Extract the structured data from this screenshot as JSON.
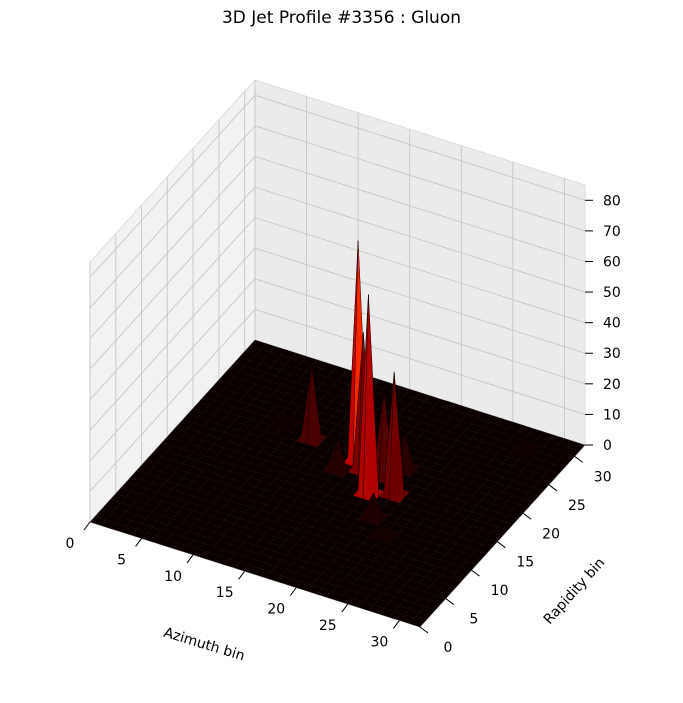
{
  "chart_data": {
    "type": "surface3d",
    "title": "3D Jet Profile #3356 : Gluon",
    "xlabel": "Azimuth bin",
    "ylabel": "Rapidity bin",
    "zlabel": "",
    "xlim": [
      0,
      32
    ],
    "ylim": [
      0,
      32
    ],
    "zlim": [
      0,
      85
    ],
    "xticks": [
      "0",
      "5",
      "10",
      "15",
      "20",
      "25",
      "30"
    ],
    "yticks": [
      "0",
      "5",
      "10",
      "15",
      "20",
      "25",
      "30"
    ],
    "zticks": [
      "0",
      "10",
      "20",
      "30",
      "40",
      "50",
      "60",
      "70",
      "80"
    ],
    "colormap": "hot",
    "grid": true,
    "peaks": [
      {
        "x": 16,
        "y": 20,
        "z": 72
      },
      {
        "x": 19,
        "y": 16,
        "z": 65
      },
      {
        "x": 17,
        "y": 19,
        "z": 45
      },
      {
        "x": 11,
        "y": 21,
        "z": 24
      },
      {
        "x": 21,
        "y": 17,
        "z": 40
      },
      {
        "x": 19,
        "y": 19,
        "z": 28
      },
      {
        "x": 21,
        "y": 13,
        "z": 8
      },
      {
        "x": 15,
        "y": 18,
        "z": 10
      },
      {
        "x": 20,
        "y": 21,
        "z": 12
      },
      {
        "x": 23,
        "y": 11,
        "z": 4
      },
      {
        "x": 8,
        "y": 22,
        "z": 2
      },
      {
        "x": 28,
        "y": 29,
        "z": 2
      }
    ]
  }
}
